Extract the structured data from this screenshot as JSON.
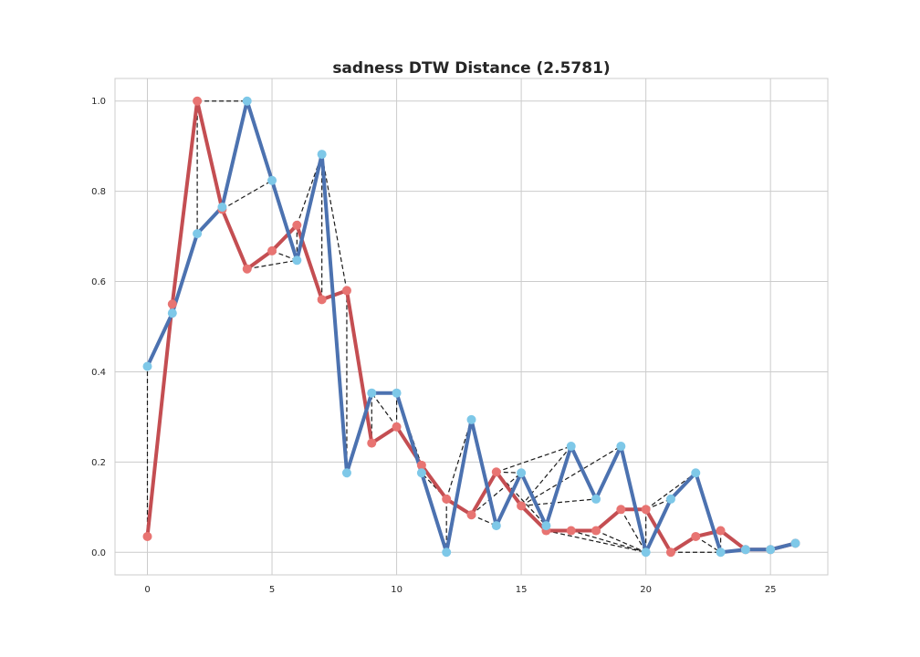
{
  "chart_data": {
    "type": "line",
    "title": "sadness DTW Distance (2.5781)",
    "xlabel": "",
    "ylabel": "",
    "xlim": [
      -1.3,
      27.3
    ],
    "ylim": [
      -0.05,
      1.05
    ],
    "x_ticks": [
      0,
      5,
      10,
      15,
      20,
      25
    ],
    "y_ticks": [
      0.0,
      0.2,
      0.4,
      0.6,
      0.8,
      1.0
    ],
    "grid": true,
    "series": [
      {
        "color": "#c44e52",
        "marker_color": "#e87472",
        "x": [
          0,
          1,
          2,
          3,
          4,
          5,
          6,
          7,
          8,
          9,
          10,
          11,
          12,
          13,
          14,
          15,
          16,
          17,
          18,
          19,
          20,
          21,
          22,
          23,
          24,
          25,
          26
        ],
        "values": [
          0.035,
          0.55,
          1.0,
          0.76,
          0.628,
          0.668,
          0.725,
          0.56,
          0.58,
          0.242,
          0.278,
          0.193,
          0.118,
          0.083,
          0.178,
          0.103,
          0.048,
          0.048,
          0.048,
          0.095,
          0.095,
          0.0,
          0.035,
          0.048,
          0.006,
          0.006,
          0.02
        ]
      },
      {
        "color": "#4c72b0",
        "marker_color": "#7ec8e8",
        "x": [
          0,
          1,
          2,
          3,
          4,
          5,
          6,
          7,
          8,
          9,
          10,
          11,
          12,
          13,
          14,
          15,
          16,
          17,
          18,
          19,
          20,
          21,
          22,
          23,
          24,
          25,
          26
        ],
        "values": [
          0.412,
          0.53,
          0.706,
          0.765,
          1.0,
          0.824,
          0.647,
          0.882,
          0.176,
          0.353,
          0.353,
          0.176,
          0.0,
          0.294,
          0.059,
          0.176,
          0.059,
          0.235,
          0.118,
          0.235,
          0.0,
          0.118,
          0.176,
          0.0,
          0.006,
          0.006,
          0.02
        ]
      }
    ],
    "alignment_pairs": [
      [
        0,
        0
      ],
      [
        0,
        1
      ],
      [
        1,
        1
      ],
      [
        2,
        2
      ],
      [
        2,
        3
      ],
      [
        2,
        4
      ],
      [
        3,
        3
      ],
      [
        3,
        5
      ],
      [
        4,
        6
      ],
      [
        5,
        6
      ],
      [
        6,
        6
      ],
      [
        6,
        7
      ],
      [
        7,
        7
      ],
      [
        8,
        7
      ],
      [
        8,
        8
      ],
      [
        9,
        9
      ],
      [
        10,
        9
      ],
      [
        10,
        10
      ],
      [
        11,
        10
      ],
      [
        11,
        11
      ],
      [
        12,
        11
      ],
      [
        12,
        12
      ],
      [
        12,
        13
      ],
      [
        13,
        14
      ],
      [
        13,
        15
      ],
      [
        14,
        15
      ],
      [
        14,
        16
      ],
      [
        14,
        17
      ],
      [
        15,
        17
      ],
      [
        15,
        18
      ],
      [
        15,
        19
      ],
      [
        16,
        20
      ],
      [
        17,
        20
      ],
      [
        18,
        20
      ],
      [
        19,
        20
      ],
      [
        20,
        20
      ],
      [
        20,
        21
      ],
      [
        20,
        22
      ],
      [
        21,
        23
      ],
      [
        22,
        23
      ],
      [
        23,
        23
      ],
      [
        24,
        24
      ],
      [
        25,
        25
      ],
      [
        26,
        26
      ]
    ]
  }
}
